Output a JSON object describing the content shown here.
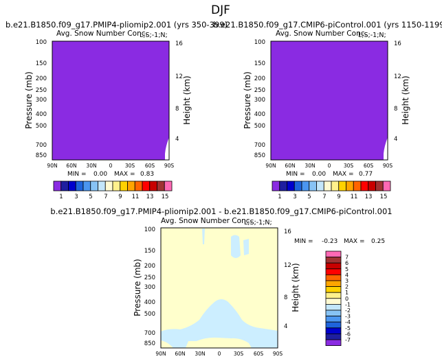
{
  "page": {
    "title": "DJF"
  },
  "colors": {
    "purple": "#8a2be2",
    "cream": "#ffffcc",
    "light_blue": "#cceeff",
    "white": "#ffffff"
  },
  "chart_data": [
    {
      "type": "heatmap",
      "title": "b.e21.B1850.f09_g17.PMIP4-pliomip2.001 (yrs 350-399)",
      "subtitle": "Avg. Snow Number Conc.",
      "units_label": "L;S;-1;N;",
      "ylabel": "Pressure (mb)",
      "y2label": "Height (km)",
      "x_ticks": [
        "90N",
        "60N",
        "30N",
        "0",
        "30S",
        "60S",
        "90S"
      ],
      "y_ticks": [
        "100",
        "150",
        "200",
        "250",
        "300",
        "400",
        "500",
        "700",
        "850"
      ],
      "y2_ticks": [
        "16",
        "12",
        "8",
        "4"
      ],
      "stats": {
        "min_label": "MIN =",
        "min": "0.00",
        "max_label": "MAX =",
        "max": "0.83"
      },
      "colorbar_labels": [
        "1",
        "3",
        "5",
        "7",
        "9",
        "11",
        "13",
        "15"
      ],
      "field": "near-uniform, 0-1 contour band everywhere"
    },
    {
      "type": "heatmap",
      "title": "b.e21.B1850.f09_g17.CMIP6-piControl.001 (yrs 1150-1199)",
      "subtitle": "Avg. Snow Number Conc.",
      "units_label": "L;S;-1;N;",
      "ylabel": "Pressure (mb)",
      "y2label": "Height (km)",
      "x_ticks": [
        "90N",
        "60N",
        "30N",
        "0",
        "30S",
        "60S",
        "90S"
      ],
      "y_ticks": [
        "100",
        "150",
        "200",
        "250",
        "300",
        "400",
        "500",
        "700",
        "850"
      ],
      "y2_ticks": [
        "16",
        "12",
        "8",
        "4"
      ],
      "stats": {
        "min_label": "MIN =",
        "min": "0.00",
        "max_label": "MAX =",
        "max": "0.77"
      },
      "colorbar_labels": [
        "1",
        "3",
        "5",
        "7",
        "9",
        "11",
        "13",
        "15"
      ],
      "field": "near-uniform, 0-1 contour band everywhere"
    },
    {
      "type": "heatmap",
      "title": "b.e21.B1850.f09_g17.PMIP4-pliomip2.001 - b.e21.B1850.f09_g17.CMIP6-piControl.001",
      "subtitle": "Avg. Snow Number Conc.",
      "units_label": "L;S;-1;N;",
      "ylabel": "Pressure (mb)",
      "y2label": "Height (km)",
      "x_ticks": [
        "90N",
        "60N",
        "30N",
        "0",
        "30S",
        "60S",
        "90S"
      ],
      "y_ticks": [
        "100",
        "150",
        "200",
        "250",
        "300",
        "400",
        "500",
        "700",
        "850"
      ],
      "y2_ticks": [
        "16",
        "12",
        "8",
        "4"
      ],
      "stats": {
        "min_label": "MIN =",
        "min": "-0.23",
        "max_label": "MAX =",
        "max": "0.25"
      },
      "colorbar_labels": [
        "7",
        "6",
        "5",
        "4",
        "3",
        "2",
        "1",
        "0",
        "-1",
        "-2",
        "-3",
        "-4",
        "-5",
        "-6",
        "-7"
      ],
      "field": "mostly 0-1 band with -1-0 band over tropics"
    }
  ]
}
